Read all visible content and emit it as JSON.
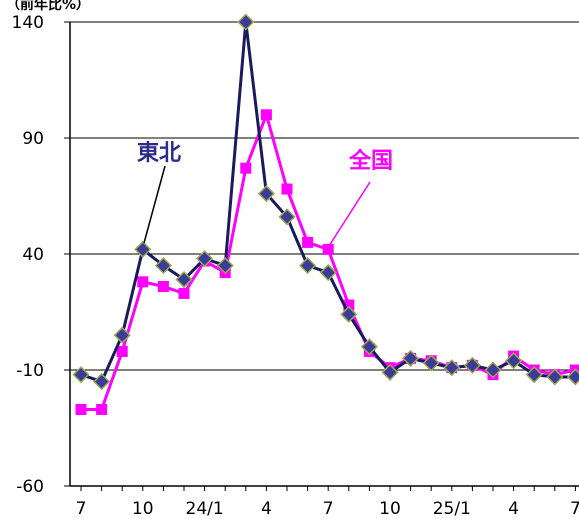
{
  "chart_data": {
    "type": "line",
    "unit_label": "（前年比%）",
    "ylim": [
      -60,
      140
    ],
    "yticks": [
      140,
      90,
      40,
      -10,
      -60
    ],
    "x_tick_labels": [
      "7",
      "10",
      "24/1",
      "4",
      "7",
      "10",
      "25/1",
      "4",
      "7"
    ],
    "grid": true,
    "series": [
      {
        "name": "東北",
        "color": "#1a1a5e",
        "marker_fill": "#3b3b9a",
        "values": [
          -12,
          -15,
          5,
          42,
          35,
          29,
          38,
          35,
          140,
          66,
          56,
          35,
          32,
          14,
          0,
          -11,
          -5,
          -7,
          -9,
          -8,
          -10,
          -6,
          -12,
          -13,
          -13
        ]
      },
      {
        "name": "全国",
        "color": "#ff00ff",
        "marker_fill": "#ff00ff",
        "values": [
          -27,
          -27,
          -2,
          28,
          26,
          23,
          37,
          32,
          77,
          100,
          68,
          45,
          42,
          18,
          -2,
          -9,
          -5,
          -6,
          -9,
          -8,
          -12,
          -4,
          -10,
          -12,
          -10
        ]
      }
    ],
    "annotations": [
      {
        "text": "東北",
        "color": "#2b2b8a"
      },
      {
        "text": "全国",
        "color": "#ff00ff"
      }
    ]
  }
}
